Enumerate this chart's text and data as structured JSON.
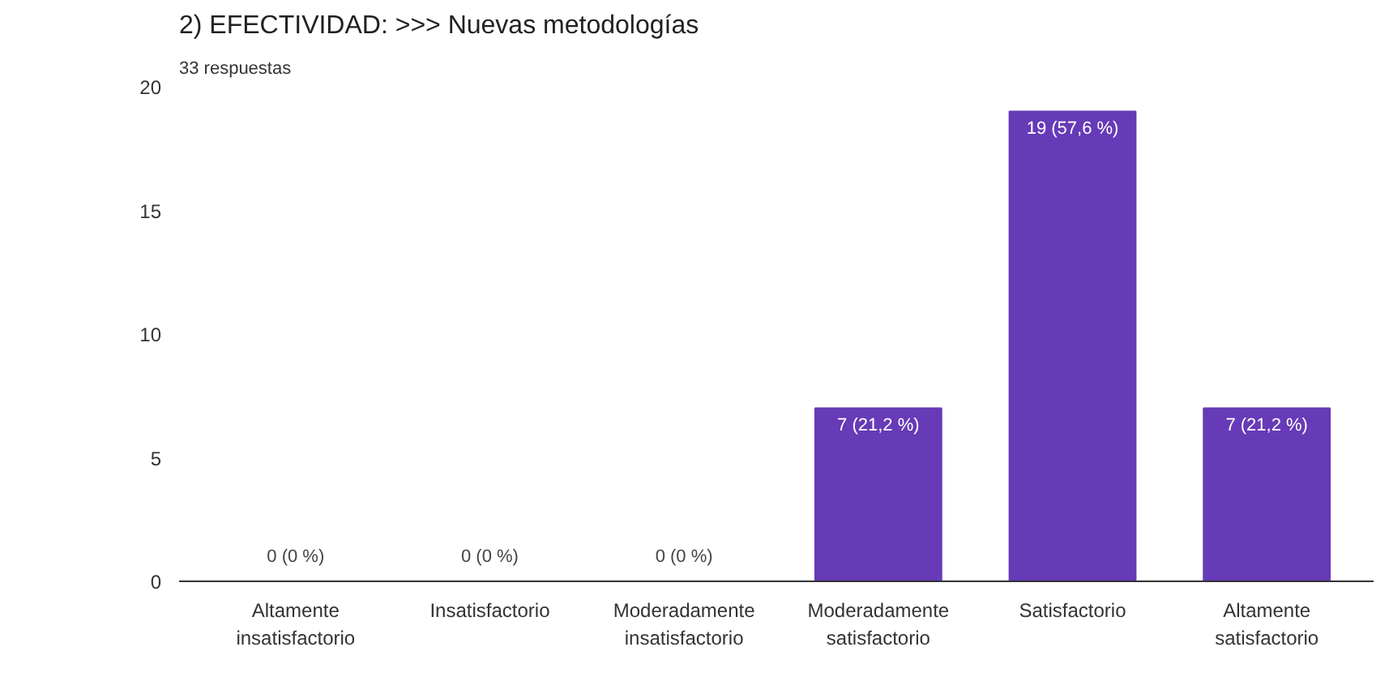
{
  "chart_data": {
    "type": "bar",
    "title": "2) EFECTIVIDAD: >>> Nuevas metodologías",
    "subtitle": "33 respuestas",
    "categories": [
      "Altamente insatisfactorio",
      "Insatisfactorio",
      "Moderadamente insatisfactorio",
      "Moderadamente satisfactorio",
      "Satisfactorio",
      "Altamente satisfactorio"
    ],
    "values": [
      0,
      0,
      0,
      7,
      19,
      7
    ],
    "value_labels": [
      "0 (0 %)",
      "0 (0 %)",
      "0 (0 %)",
      "7 (21,2 %)",
      "19 (57,6 %)",
      "7 (21,2 %)"
    ],
    "color": "#673ab7",
    "ylim": [
      0,
      20
    ],
    "yticks": [
      0,
      5,
      10,
      15,
      20
    ],
    "grid": false
  }
}
